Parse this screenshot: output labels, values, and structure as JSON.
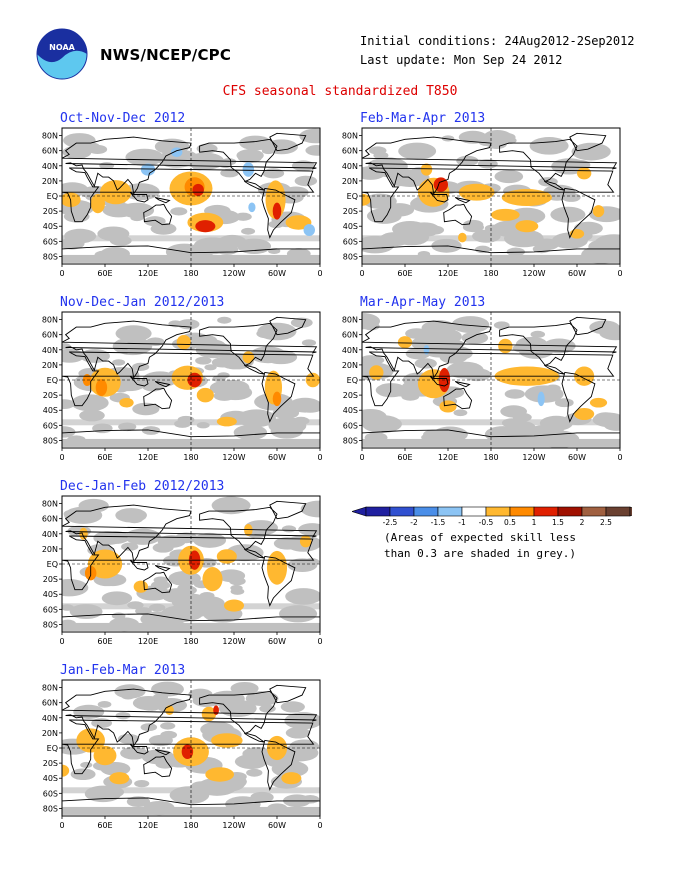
{
  "header": {
    "org": "NWS/NCEP/CPC",
    "initial_conditions": "Initial conditions: 24Aug2012-2Sep2012",
    "last_update": "Last update: Mon Sep 24 2012",
    "main_title": "CFS seasonal standardized T850",
    "logo_icon": "noaa-logo-icon"
  },
  "axes": {
    "lat_labels": [
      "80N",
      "60N",
      "40N",
      "20N",
      "EQ",
      "20S",
      "40S",
      "60S",
      "80S"
    ],
    "lon_labels": [
      "0",
      "60E",
      "120E",
      "180",
      "120W",
      "60W",
      "0"
    ]
  },
  "panels": [
    {
      "id": "ond",
      "title": "Oct-Nov-Dec 2012"
    },
    {
      "id": "fma",
      "title": "Feb-Mar-Apr 2013"
    },
    {
      "id": "ndj",
      "title": "Nov-Dec-Jan 2012/2013"
    },
    {
      "id": "mam",
      "title": "Mar-Apr-May 2013"
    },
    {
      "id": "djf",
      "title": "Dec-Jan-Feb 2012/2013"
    },
    {
      "id": "jfm",
      "title": "Jan-Feb-Mar 2013"
    }
  ],
  "legend": {
    "ticks": [
      "-2.5",
      "-2",
      "-1.5",
      "-1",
      "-0.5",
      "0.5",
      "1",
      "1.5",
      "2",
      "2.5"
    ],
    "colors": [
      "#2020a0",
      "#3050d0",
      "#4a8ee8",
      "#8cc4f4",
      "#ffffff",
      "#ffb830",
      "#ff8a00",
      "#e02000",
      "#a01000",
      "#a06040",
      "#6a4030"
    ],
    "note_line1": "(Areas of expected skill less",
    "note_line2": "than 0.3 are shaded in grey.)"
  },
  "colors": {
    "title_blue": "#2233ee",
    "title_red": "#dd0000",
    "skill_grey": "#c0c0c0",
    "orange": "#ffb830",
    "red": "#e02000",
    "light_blue": "#8cc4f4"
  }
}
